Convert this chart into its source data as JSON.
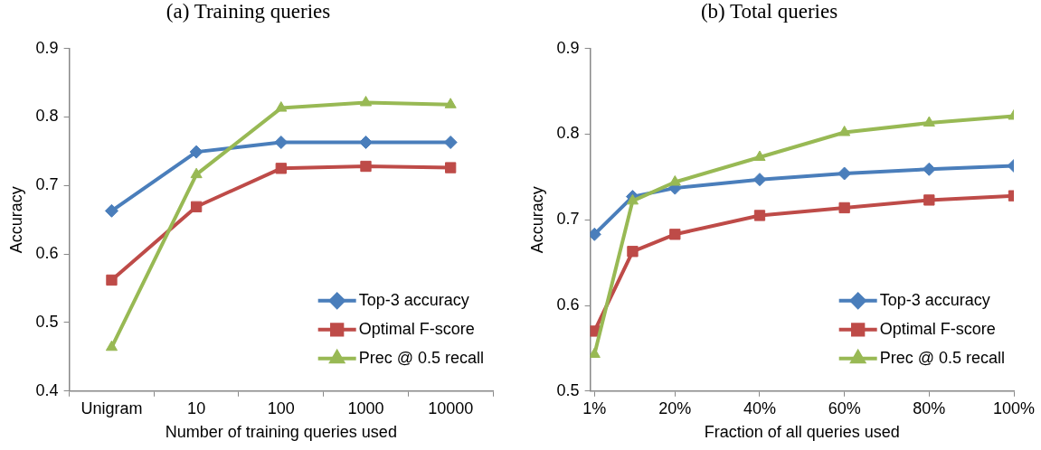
{
  "chart_data": [
    {
      "type": "line",
      "title": "(a) Training queries",
      "xlabel": "Number of training queries used",
      "ylabel": "Accuracy",
      "categories": [
        "Unigram",
        "10",
        "100",
        "1000",
        "10000"
      ],
      "series": [
        {
          "name": "Top-3 accuracy",
          "color": "#4a7ebb",
          "marker": "diamond",
          "values": [
            0.663,
            0.749,
            0.763,
            0.763,
            0.763
          ]
        },
        {
          "name": "Optimal F-score",
          "color": "#be4b48",
          "marker": "square",
          "values": [
            0.562,
            0.669,
            0.725,
            0.728,
            0.726
          ]
        },
        {
          "name": "Prec @ 0.5 recall",
          "color": "#98b954",
          "marker": "triangle",
          "values": [
            0.464,
            0.716,
            0.813,
            0.821,
            0.818
          ]
        }
      ],
      "ylim": [
        0.4,
        0.9
      ],
      "yticks": [
        {
          "value": 0.4,
          "label": "0.4"
        },
        {
          "value": 0.5,
          "label": "0.5"
        },
        {
          "value": 0.6,
          "label": "0.6"
        },
        {
          "value": 0.7,
          "label": "0.7"
        },
        {
          "value": 0.8,
          "label": "0.8"
        },
        {
          "value": 0.9,
          "label": "0.9"
        }
      ],
      "grid": false,
      "legend": "bottom right",
      "line_style": "solid"
    },
    {
      "type": "line",
      "title": "(b) Total queries",
      "xlabel": "Fraction of all queries used",
      "ylabel": "Accuracy",
      "x": [
        1,
        10,
        20,
        40,
        60,
        80,
        100
      ],
      "series": [
        {
          "name": "Top-3 accuracy",
          "color": "#4a7ebb",
          "marker": "diamond",
          "values": [
            0.683,
            0.727,
            0.737,
            0.747,
            0.754,
            0.759,
            0.763
          ]
        },
        {
          "name": "Optimal F-score",
          "color": "#be4b48",
          "marker": "square",
          "values": [
            0.57,
            0.663,
            0.683,
            0.705,
            0.714,
            0.723,
            0.728
          ]
        },
        {
          "name": "Prec @ 0.5 recall",
          "color": "#98b954",
          "marker": "triangle",
          "values": [
            0.543,
            0.722,
            0.744,
            0.773,
            0.802,
            0.813,
            0.821
          ]
        }
      ],
      "xlim": [
        0,
        100
      ],
      "xticks": [
        {
          "value": 1,
          "label": "1%"
        },
        {
          "value": 20,
          "label": "20%"
        },
        {
          "value": 40,
          "label": "40%"
        },
        {
          "value": 60,
          "label": "60%"
        },
        {
          "value": 80,
          "label": "80%"
        },
        {
          "value": 100,
          "label": "100%"
        }
      ],
      "ylim": [
        0.5,
        0.9
      ],
      "yticks": [
        {
          "value": 0.5,
          "label": "0.5"
        },
        {
          "value": 0.6,
          "label": "0.6"
        },
        {
          "value": 0.7,
          "label": "0.7"
        },
        {
          "value": 0.8,
          "label": "0.8"
        },
        {
          "value": 0.9,
          "label": "0.9"
        }
      ],
      "grid": false,
      "legend": "bottom right",
      "line_style": "solid"
    }
  ]
}
